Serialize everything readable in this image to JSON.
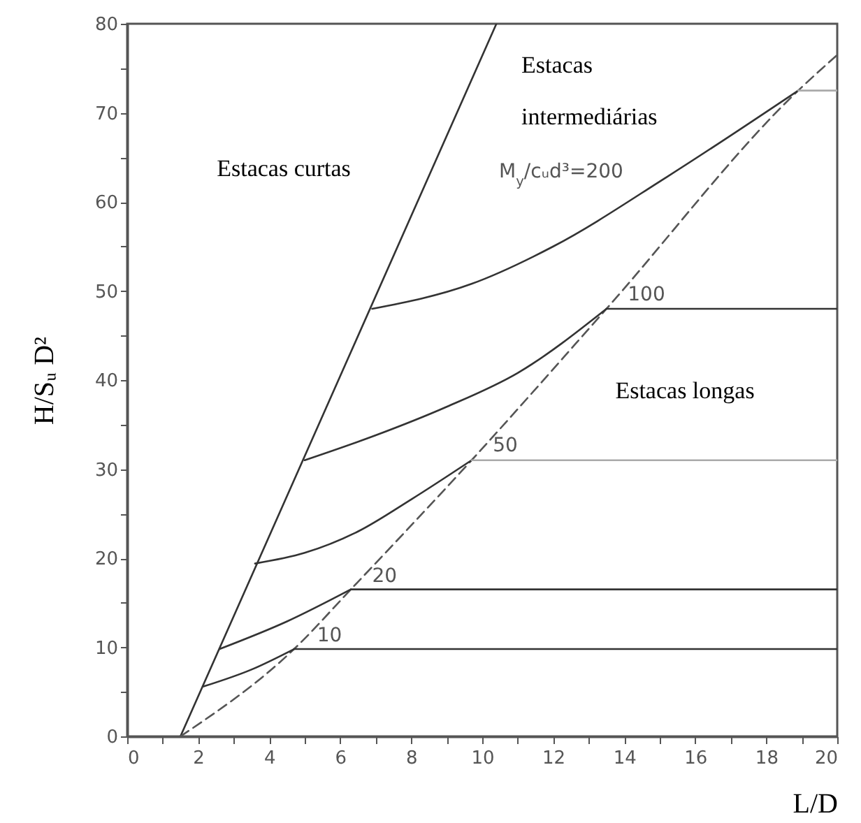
{
  "chart_data": {
    "type": "line",
    "xlabel": "L/D",
    "ylabel": "H/Sᵤ D²",
    "xlim": [
      0,
      20
    ],
    "ylim": [
      0,
      80
    ],
    "xticks": [
      0,
      {
        "value": 1,
        "label": null
      },
      2,
      {
        "value": 3,
        "label": null
      },
      4,
      {
        "value": 5,
        "label": null
      },
      6,
      {
        "value": 7,
        "label": null
      },
      8,
      {
        "value": 9,
        "label": null
      },
      10,
      {
        "value": 11,
        "label": null
      },
      12,
      {
        "value": 13,
        "label": null
      },
      14,
      {
        "value": 15,
        "label": null
      },
      16,
      {
        "value": 17,
        "label": null
      },
      18,
      {
        "value": 19,
        "label": null
      },
      20
    ],
    "yticks": [
      0,
      {
        "value": 5,
        "label": null
      },
      10,
      {
        "value": 15,
        "label": null
      },
      20,
      {
        "value": 25,
        "label": null
      },
      30,
      {
        "value": 35,
        "label": null
      },
      40,
      {
        "value": 45,
        "label": null
      },
      50,
      {
        "value": 55,
        "label": null
      },
      60,
      {
        "value": 65,
        "label": null
      },
      70,
      {
        "value": 75,
        "label": null
      },
      80
    ],
    "grid": false,
    "marker": "none",
    "series": [
      {
        "color": "#333333",
        "x": [
          1.5,
          10.4
        ],
        "values": [
          0,
          80
        ]
      },
      {
        "color": "#555555",
        "line_style": "dashed",
        "x": [
          1.5,
          4.7,
          6.3,
          9.7,
          13.5,
          18.9,
          20
        ],
        "values": [
          0,
          9.8,
          16.5,
          31,
          48,
          72.5,
          76.5
        ]
      },
      {
        "color": "#333333",
        "x": [
          2.15,
          3.5,
          4.7
        ],
        "values": [
          5.6,
          7.5,
          9.8
        ]
      },
      {
        "color": "#333333",
        "x": [
          4.7,
          20
        ],
        "values": [
          9.8,
          9.8
        ]
      },
      {
        "color": "#333333",
        "x": [
          2.6,
          4.5,
          6.3
        ],
        "values": [
          9.8,
          12.9,
          16.5
        ]
      },
      {
        "color": "#333333",
        "x": [
          6.3,
          20
        ],
        "values": [
          16.5,
          16.5
        ]
      },
      {
        "color": "#333333",
        "x": [
          3.6,
          5,
          6.5,
          8,
          9.7
        ],
        "values": [
          19.4,
          20.6,
          23,
          26.6,
          31
        ]
      },
      {
        "color": "#aaaaaa",
        "x": [
          9.7,
          20
        ],
        "values": [
          31,
          31
        ]
      },
      {
        "color": "#333333",
        "x": [
          5,
          7,
          9,
          11,
          13.5
        ],
        "values": [
          31,
          33.8,
          37,
          40.8,
          48
        ]
      },
      {
        "color": "#333333",
        "x": [
          13.5,
          20
        ],
        "values": [
          48,
          48
        ]
      },
      {
        "color": "#333333",
        "x": [
          6.9,
          9.7,
          12,
          15.2,
          18.9
        ],
        "values": [
          48,
          50.8,
          55,
          62.8,
          72.5
        ]
      },
      {
        "color": "#aaaaaa",
        "x": [
          18.9,
          20
        ],
        "values": [
          72.5,
          72.5
        ]
      }
    ],
    "annotations": [
      "Estacas curtas",
      "Estacas",
      "intermediárias",
      "Estacas longas",
      {
        "text": "10",
        "x": 5.35,
        "y": 11.3
      },
      {
        "text": "20",
        "x": 6.9,
        "y": 18
      },
      {
        "text": "50",
        "x": 10.3,
        "y": 32.6
      },
      {
        "text": "100",
        "x": 14.1,
        "y": 49.6
      },
      "M$_{y}$/cᵤd³=200"
    ]
  }
}
